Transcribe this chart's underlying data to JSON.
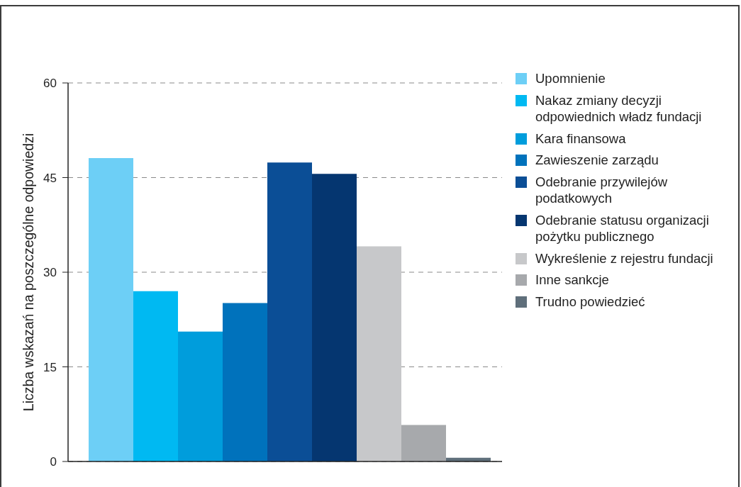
{
  "chart_data": {
    "type": "bar",
    "ylabel": "Liczba wskazań na poszczególne odpowiedzi",
    "categories": [
      null
    ],
    "series": [
      {
        "name": "Upomnienie",
        "color": "#6dcff6",
        "values": [
          48.1
        ]
      },
      {
        "name": "Nakaz zmiany decyzji odpowiednich władz fundacji",
        "color": "#00b9f2",
        "values": [
          27
        ]
      },
      {
        "name": "Kara finansowa",
        "color": "#009ddc",
        "values": [
          20.6
        ]
      },
      {
        "name": "Zawieszenie zarządu",
        "color": "#0072bc",
        "values": [
          25.1
        ]
      },
      {
        "name": "Odebranie przywilejów podatkowych",
        "color": "#0b4e96",
        "values": [
          47.4
        ]
      },
      {
        "name": "Odebranie statusu organizacji pożytku publicznego",
        "color": "#053670",
        "values": [
          45.6
        ]
      },
      {
        "name": "Wykreślenie z rejestru fundacji",
        "color": "#c7c8ca",
        "values": [
          34.1
        ]
      },
      {
        "name": "Inne sankcje",
        "color": "#a7a9ac",
        "values": [
          5.8
        ]
      },
      {
        "name": "Trudno powiedzieć",
        "color": "#5f6f7b",
        "values": [
          0.6
        ]
      }
    ],
    "ylim": [
      0,
      60
    ],
    "yticks": [
      0,
      15,
      30,
      45,
      60
    ],
    "grid": "y",
    "legend": "right"
  }
}
